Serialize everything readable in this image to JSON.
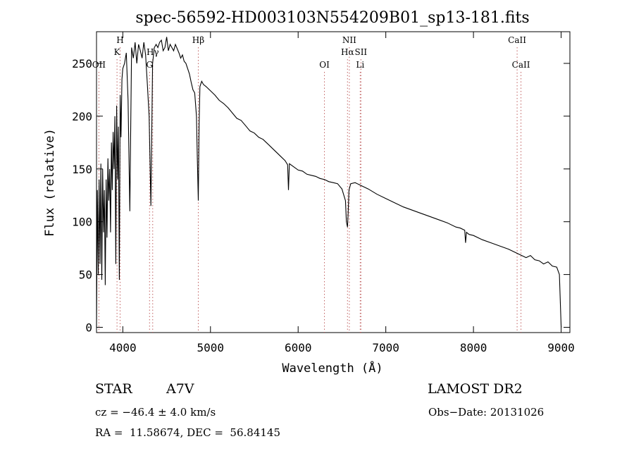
{
  "chart_data": {
    "type": "line",
    "title": "spec-56592-HD003103N554209B01_sp13-181.fits",
    "xlabel": "Wavelength (Å)",
    "ylabel": "Flux (relative)",
    "xlim": [
      3700,
      9100
    ],
    "ylim": [
      -5,
      280
    ],
    "xticks": [
      4000,
      5000,
      6000,
      7000,
      8000,
      9000
    ],
    "yticks": [
      0,
      50,
      100,
      150,
      200,
      250
    ],
    "grid": false,
    "series": [
      {
        "x": [
          3700,
          3710,
          3720,
          3730,
          3740,
          3750,
          3760,
          3770,
          3780,
          3790,
          3800,
          3810,
          3820,
          3830,
          3840,
          3850,
          3860,
          3870,
          3880,
          3890,
          3900,
          3910,
          3920,
          3930,
          3940,
          3950,
          3960,
          3970,
          3980,
          3990,
          4000,
          4020,
          4040,
          4060,
          4080,
          4100,
          4120,
          4140,
          4160,
          4180,
          4200,
          4220,
          4240,
          4260,
          4280,
          4300,
          4320,
          4340,
          4360,
          4380,
          4400,
          4420,
          4440,
          4460,
          4480,
          4500,
          4520,
          4540,
          4560,
          4580,
          4600,
          4620,
          4640,
          4660,
          4680,
          4700,
          4720,
          4740,
          4760,
          4780,
          4800,
          4820,
          4840,
          4850,
          4861,
          4870,
          4880,
          4900,
          4920,
          4950,
          5000,
          5050,
          5100,
          5150,
          5200,
          5250,
          5300,
          5350,
          5400,
          5450,
          5500,
          5550,
          5600,
          5650,
          5700,
          5750,
          5800,
          5850,
          5880,
          5890,
          5900,
          5950,
          6000,
          6050,
          6100,
          6150,
          6200,
          6250,
          6300,
          6350,
          6400,
          6450,
          6500,
          6540,
          6550,
          6563,
          6570,
          6580,
          6600,
          6650,
          6700,
          6800,
          6900,
          7000,
          7100,
          7200,
          7300,
          7400,
          7500,
          7600,
          7700,
          7800,
          7850,
          7900,
          7910,
          7920,
          7950,
          8000,
          8100,
          8200,
          8300,
          8400,
          8500,
          8550,
          8600,
          8650,
          8700,
          8750,
          8800,
          8850,
          8900,
          8950,
          8980,
          9000
        ],
        "y": [
          0,
          130,
          50,
          140,
          60,
          155,
          45,
          150,
          90,
          130,
          40,
          140,
          85,
          160,
          120,
          150,
          90,
          175,
          130,
          185,
          150,
          200,
          60,
          210,
          140,
          190,
          45,
          220,
          180,
          235,
          245,
          250,
          260,
          215,
          110,
          265,
          255,
          270,
          250,
          268,
          262,
          255,
          270,
          258,
          230,
          200,
          115,
          250,
          265,
          268,
          265,
          270,
          272,
          262,
          265,
          275,
          262,
          268,
          265,
          262,
          268,
          264,
          260,
          255,
          258,
          252,
          250,
          245,
          240,
          232,
          225,
          222,
          200,
          160,
          120,
          190,
          228,
          233,
          230,
          228,
          224,
          220,
          215,
          212,
          208,
          203,
          198,
          196,
          191,
          186,
          184,
          180,
          178,
          174,
          170,
          166,
          162,
          158,
          154,
          130,
          155,
          152,
          149,
          148,
          145,
          144,
          143,
          141,
          140,
          138,
          137,
          136,
          131,
          120,
          100,
          95,
          108,
          130,
          136,
          137,
          135,
          131,
          126,
          122,
          118,
          114,
          111,
          108,
          105,
          102,
          99,
          95,
          94,
          92,
          80,
          90,
          88,
          87,
          83,
          80,
          77,
          74,
          70,
          68,
          66,
          68,
          64,
          63,
          60,
          62,
          58,
          57,
          50,
          0
        ]
      }
    ],
    "annotations": [
      {
        "label": "OII",
        "x": 3727,
        "row": 3
      },
      {
        "label": "K",
        "x": 3934,
        "row": 2
      },
      {
        "label": "H",
        "x": 3969,
        "row": 1
      },
      {
        "label": "G",
        "x": 4305,
        "row": 3
      },
      {
        "label": "Hγ",
        "x": 4341,
        "row": 2
      },
      {
        "label": "Hβ",
        "x": 4861,
        "row": 1
      },
      {
        "label": "OI",
        "x": 6300,
        "row": 3
      },
      {
        "label": "Hα",
        "x": 6563,
        "row": 2
      },
      {
        "label": "NII",
        "x": 6584,
        "row": 1
      },
      {
        "label": "Li",
        "x": 6708,
        "row": 3
      },
      {
        "label": "SII",
        "x": 6716,
        "row": 2
      },
      {
        "label": "CaII",
        "x": 8498,
        "row": 1
      },
      {
        "label": "CaII",
        "x": 8542,
        "row": 3
      }
    ]
  },
  "info": {
    "class_label": "STAR",
    "subclass": "A7V",
    "survey": "LAMOST DR2",
    "cz": "cz = −46.4 ± 4.0 km/s",
    "obs_date": "Obs−Date: 20131026",
    "radec": "RA =  11.58674, DEC =  56.84145"
  },
  "colors": {
    "line": "#000000",
    "marker": "#c06060",
    "axes": "#000000"
  }
}
